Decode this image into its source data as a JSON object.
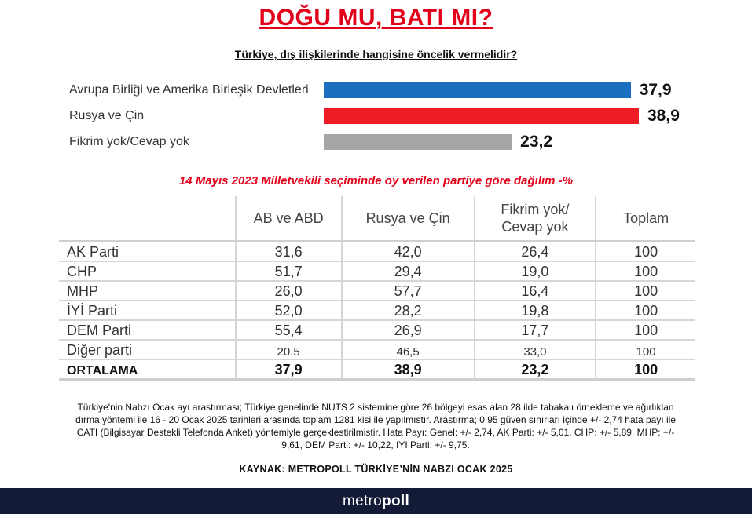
{
  "title": "DOĞU MU, BATI MI?",
  "question": "Türkiye, dış ilişkilerinde hangisine öncelik vermelidir?",
  "colors": {
    "eu_us": "#1a6fc0",
    "russia_china": "#ee1c25",
    "no_opinion": "#a6a6a6",
    "accent": "#e3001b",
    "footer": "#141b37"
  },
  "chart_data": [
    {
      "type": "bar",
      "orientation": "horizontal",
      "title": "Türkiye, dış ilişkilerinde hangisine öncelik vermelidir?",
      "categories": [
        "Avrupa Birliği ve Amerika Birleşik Devletleri",
        "Rusya ve Çin",
        "Fikrim yok/Cevap yok"
      ],
      "values": [
        37.9,
        38.9,
        23.2
      ],
      "value_labels": [
        "37,9",
        "38,9",
        "23,2"
      ],
      "colors": [
        "#1a6fc0",
        "#ee1c25",
        "#a6a6a6"
      ],
      "xlim": [
        0,
        38.9
      ],
      "grid": false
    },
    {
      "type": "table",
      "title": "14 Mayıs 2023 Milletvekili seçiminde oy verilen partiye göre dağılım -%",
      "columns": [
        "AB ve ABD",
        "Rusya ve Çin",
        "Fikrim yok/ Cevap yok",
        "Toplam"
      ],
      "rows": [
        {
          "party": "AK Parti",
          "values": [
            "31,6",
            "42,0",
            "26,4",
            "100"
          ]
        },
        {
          "party": "CHP",
          "values": [
            "51,7",
            "29,4",
            "19,0",
            "100"
          ]
        },
        {
          "party": "MHP",
          "values": [
            "26,0",
            "57,7",
            "16,4",
            "100"
          ]
        },
        {
          "party": "İYİ Parti",
          "values": [
            "52,0",
            "28,2",
            "19,8",
            "100"
          ]
        },
        {
          "party": "DEM Parti",
          "values": [
            "55,4",
            "26,9",
            "17,7",
            "100"
          ]
        },
        {
          "party": "Diğer parti",
          "values": [
            "20,5",
            "46,5",
            "33,0",
            "100"
          ]
        },
        {
          "party": "ORTALAMA",
          "values": [
            "37,9",
            "38,9",
            "23,2",
            "100"
          ]
        }
      ]
    }
  ],
  "table_header": {
    "col1": "AB ve ABD",
    "col2": "Rusya ve Çin",
    "col3_line1": "Fikrim yok/",
    "col3_line2": "Cevap yok",
    "col4": "Toplam"
  },
  "methodology": "Türkiye'nin Nabzı Ocak ayı arastırması; Türkiye genelinde NUTS 2 sistemine göre 26 bölgeyi esas alan 28 ilde tabakalı örnekleme ve ağırlıklan dırma yöntemi ile 16 - 20 Ocak 2025 tarihleri arasında toplam 1281 kisi ile yapılmıstır. Arastırma; 0,95 güven sınırları içinde +/- 2,74 hata payı ile CATI (Bilgisayar Destekli Telefonda Anket) yöntemiyle gerçeklestirilmistir. Hata Payı: Genel: +/- 2,74, AK Parti: +/- 5,01, CHP: +/- 5,89, MHP: +/- 9,61, DEM Parti: +/- 10,22, IYI Parti: +/- 9,75.",
  "source": "KAYNAK: METROPOLL TÜRKİYE’NİN NABZI OCAK 2025",
  "logo": {
    "part1": "metro",
    "part2": "poll"
  }
}
